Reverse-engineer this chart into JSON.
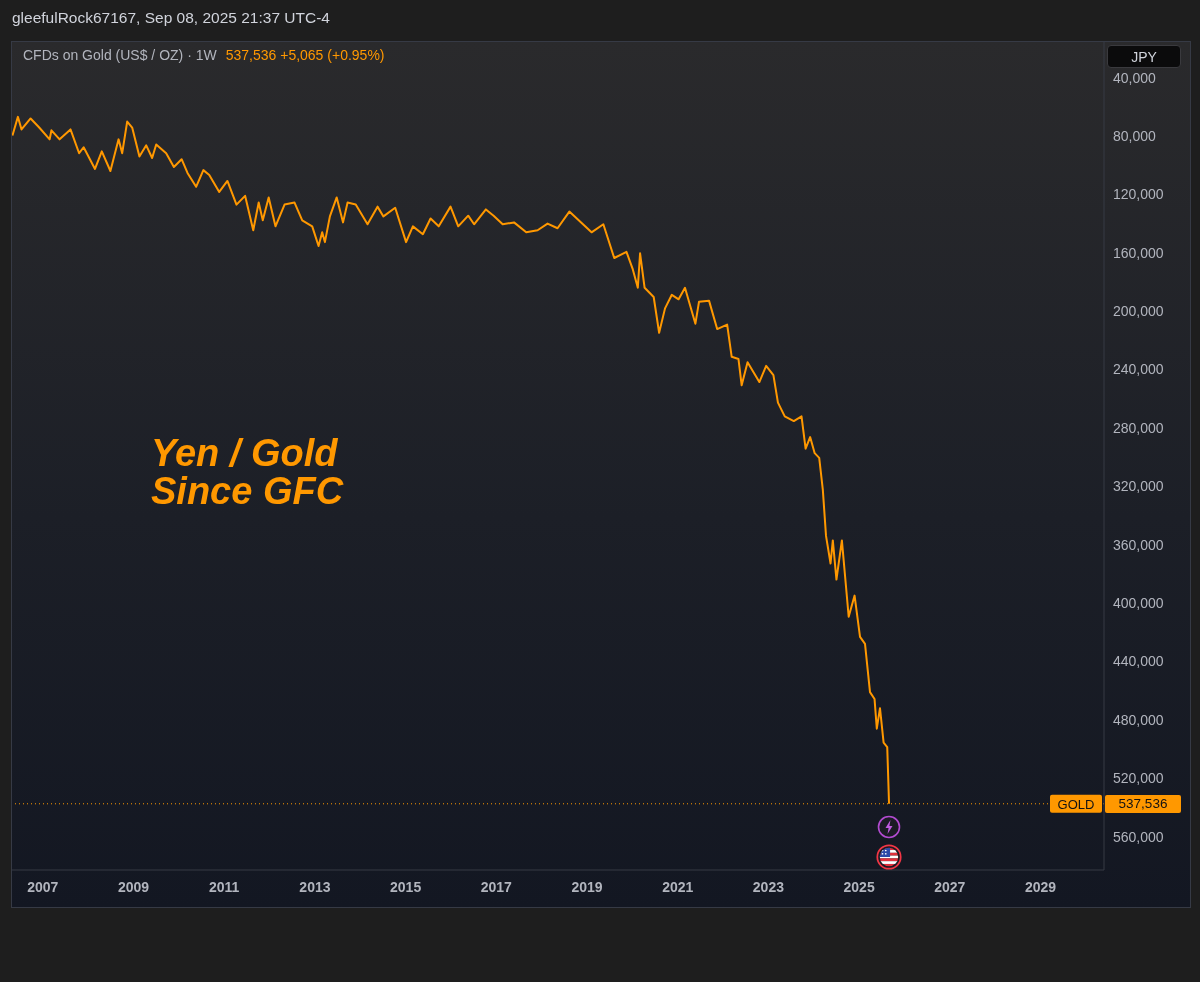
{
  "chart_data": {
    "type": "line",
    "title": "CFDs on Gold (US$ / OZ) · 1W",
    "subtitle": "537,536 +5,065 (+0.95%)",
    "annotations": [
      "gleefulRock67167, Sep 08, 2025 21:37 UTC-4",
      "Yen / Gold\nSince GFC",
      "JPY",
      "537,536"
    ],
    "x": [
      2006.33,
      2006.45,
      2006.53,
      2006.73,
      2006.92,
      2007.15,
      2007.19,
      2007.37,
      2007.61,
      2007.8,
      2007.9,
      2008.15,
      2008.3,
      2008.49,
      2008.67,
      2008.75,
      2008.86,
      2008.97,
      2009.13,
      2009.28,
      2009.41,
      2009.5,
      2009.72,
      2009.89,
      2010.06,
      2010.19,
      2010.38,
      2010.54,
      2010.67,
      2010.89,
      2011.07,
      2011.27,
      2011.46,
      2011.64,
      2011.76,
      2011.85,
      2011.98,
      2012.13,
      2012.33,
      2012.55,
      2012.72,
      2012.94,
      2013.08,
      2013.16,
      2013.22,
      2013.33,
      2013.48,
      2013.62,
      2013.72,
      2013.9,
      2014.16,
      2014.38,
      2014.51,
      2014.77,
      2015.01,
      2015.16,
      2015.38,
      2015.55,
      2015.73,
      2015.99,
      2016.16,
      2016.38,
      2016.51,
      2016.77,
      2016.94,
      2017.14,
      2017.39,
      2017.66,
      2017.91,
      2018.13,
      2018.35,
      2018.61,
      2018.87,
      2019.1,
      2019.36,
      2019.6,
      2019.87,
      2020.01,
      2020.12,
      2020.17,
      2020.27,
      2020.47,
      2020.59,
      2020.72,
      2020.87,
      2021.02,
      2021.16,
      2021.39,
      2021.47,
      2021.69,
      2021.87,
      2022.09,
      2022.19,
      2022.34,
      2022.41,
      2022.54,
      2022.8,
      2022.95,
      2023.11,
      2023.21,
      2023.36,
      2023.56,
      2023.73,
      2023.82,
      2023.92,
      2024.02,
      2024.12,
      2024.2,
      2024.27,
      2024.37,
      2024.42,
      2024.5,
      2024.62,
      2024.77,
      2024.9,
      2025.02,
      2025.13,
      2025.24,
      2025.34,
      2025.39,
      2025.46,
      2025.54,
      2025.62,
      2025.66
    ],
    "values": [
      79700,
      66900,
      75500,
      68000,
      74200,
      82300,
      76100,
      82300,
      75500,
      91800,
      87700,
      102600,
      90500,
      104000,
      82300,
      91800,
      70100,
      74200,
      94000,
      86400,
      95100,
      85800,
      91800,
      101200,
      95900,
      105300,
      114800,
      103400,
      106700,
      118300,
      110800,
      127000,
      121000,
      144600,
      125600,
      137800,
      122100,
      141900,
      127000,
      125600,
      137800,
      141900,
      155400,
      146000,
      152700,
      135100,
      122100,
      139200,
      125600,
      127000,
      140500,
      128400,
      135100,
      129200,
      152700,
      141900,
      147300,
      136500,
      141900,
      128400,
      141900,
      134600,
      140500,
      130300,
      134600,
      140500,
      139200,
      146000,
      144600,
      140000,
      143200,
      131800,
      139200,
      146000,
      140500,
      163600,
      159400,
      171400,
      184000,
      160400,
      184000,
      190300,
      214800,
      198100,
      188800,
      191900,
      184000,
      208600,
      193500,
      192800,
      212300,
      209200,
      231300,
      232800,
      250800,
      235000,
      248600,
      237500,
      243800,
      262700,
      272100,
      275300,
      272100,
      294200,
      286300,
      297300,
      300500,
      322500,
      354000,
      372900,
      357100,
      383900,
      357100,
      409400,
      394900,
      423200,
      428000,
      461000,
      465700,
      486100,
      472000,
      495600,
      498700,
      537536
    ],
    "color": "#ff9800",
    "marker": "none",
    "line_style": "solid",
    "xlim": [
      2006.32,
      2030.4
    ],
    "xticks": [
      2007,
      2009,
      2011,
      2013,
      2015,
      2017,
      2019,
      2021,
      2023,
      2025,
      2027,
      2029
    ],
    "ylim": [
      582900,
      15600
    ],
    "yticks": [
      {
        "value": 40000,
        "label": "40,000"
      },
      {
        "value": 80000,
        "label": "80,000"
      },
      {
        "value": 120000,
        "label": "120,000"
      },
      {
        "value": 160000,
        "label": "160,000"
      },
      {
        "value": 200000,
        "label": "200,000"
      },
      {
        "value": 240000,
        "label": "240,000"
      },
      {
        "value": 280000,
        "label": "280,000"
      },
      {
        "value": 320000,
        "label": "320,000"
      },
      {
        "value": 360000,
        "label": "360,000"
      },
      {
        "value": 400000,
        "label": "400,000"
      },
      {
        "value": 440000,
        "label": "440,000"
      },
      {
        "value": 480000,
        "label": "480,000"
      },
      {
        "value": 520000,
        "label": "520,000"
      },
      {
        "value": 560000,
        "label": "560,000"
      }
    ],
    "ref_lines": [
      {
        "axis": "y",
        "value": 537536,
        "label": "GOLD",
        "color": "#ff9800",
        "line_style": "dotted"
      }
    ]
  }
}
